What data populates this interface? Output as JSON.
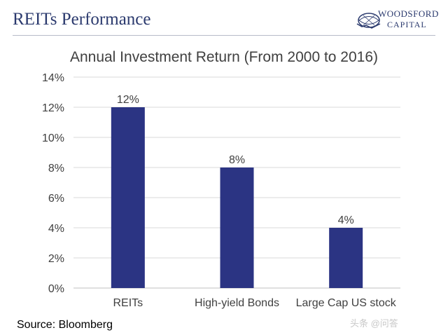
{
  "header": {
    "title": "REITs Performance",
    "logo_line1": "WOODSFORD",
    "logo_line2": "CAPITAL"
  },
  "footer": {
    "source": "Source: Bloomberg",
    "watermark": "头条 @问答"
  },
  "colors": {
    "bar": "#2b3483",
    "title_navy": "#2b3a6e",
    "grid": "#d9d9d9"
  },
  "chart_data": {
    "type": "bar",
    "title": "Annual Investment Return (From 2000 to 2016)",
    "categories": [
      "REITs",
      "High-yield Bonds",
      "Large Cap US stock"
    ],
    "values": [
      12,
      8,
      4
    ],
    "data_labels": [
      "12%",
      "8%",
      "4%"
    ],
    "yticks": [
      "0%",
      "2%",
      "4%",
      "6%",
      "8%",
      "10%",
      "12%",
      "14%"
    ],
    "ylim": [
      0,
      14
    ],
    "grid": true,
    "legend": "none"
  }
}
